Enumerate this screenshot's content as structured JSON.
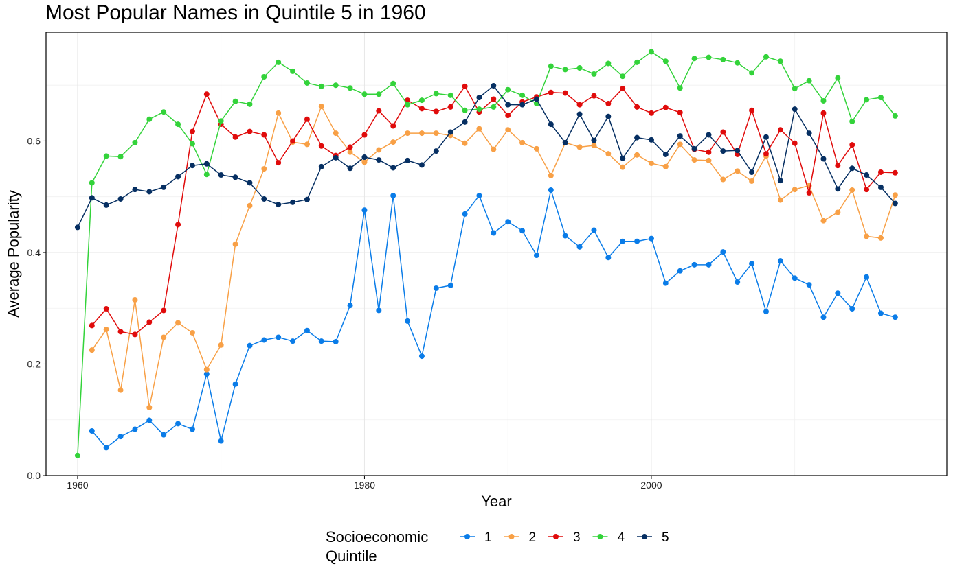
{
  "chart_data": {
    "type": "line",
    "title": "Most Popular Names in Quintile 5 in 1960",
    "xlabel": "Year",
    "ylabel": "Average Popularity",
    "xlim": [
      1957.8,
      2020.6
    ],
    "ylim": [
      0.0,
      0.795
    ],
    "x_ticks": [
      1960,
      1980,
      2000
    ],
    "y_ticks": [
      0.0,
      0.2,
      0.4,
      0.6
    ],
    "y_tick_labels": [
      "0.0",
      "0.2",
      "0.4",
      "0.6"
    ],
    "grid": true,
    "legend": {
      "title_lines": [
        "Socioeconomic",
        "Quintile"
      ],
      "position": "bottom"
    },
    "series": [
      {
        "name": "1",
        "color": "#0a7ce8",
        "x": [
          1961,
          1962,
          1963,
          1964,
          1965,
          1966,
          1967,
          1968,
          1969,
          1970,
          1971,
          1972,
          1973,
          1974,
          1975,
          1976,
          1977,
          1978,
          1979,
          1980,
          1981,
          1982,
          1983,
          1984,
          1985,
          1986,
          1987,
          1988,
          1989,
          1990,
          1991,
          1992,
          1993,
          1994,
          1995,
          1996,
          1997,
          1998,
          1999,
          2000,
          2001,
          2002,
          2003,
          2004,
          2005,
          2006,
          2007,
          2008,
          2009,
          2010,
          2011,
          2012,
          2013,
          2014,
          2015,
          2016,
          2017
        ],
        "values": [
          0.08,
          0.05,
          0.07,
          0.083,
          0.099,
          0.073,
          0.093,
          0.083,
          0.182,
          0.062,
          0.164,
          0.233,
          0.243,
          0.248,
          0.241,
          0.26,
          0.241,
          0.24,
          0.305,
          0.476,
          0.296,
          0.502,
          0.277,
          0.214,
          0.336,
          0.341,
          0.469,
          0.502,
          0.435,
          0.455,
          0.439,
          0.395,
          0.512,
          0.43,
          0.41,
          0.44,
          0.391,
          0.42,
          0.42,
          0.425,
          0.345,
          0.367,
          0.378,
          0.378,
          0.401,
          0.347,
          0.38,
          0.294,
          0.385,
          0.354,
          0.342,
          0.284,
          0.327,
          0.299,
          0.356,
          0.291,
          0.284
        ]
      },
      {
        "name": "2",
        "color": "#f8a046",
        "x": [
          1961,
          1962,
          1963,
          1964,
          1965,
          1966,
          1967,
          1968,
          1969,
          1970,
          1971,
          1972,
          1973,
          1974,
          1975,
          1976,
          1977,
          1978,
          1979,
          1980,
          1981,
          1982,
          1983,
          1984,
          1985,
          1986,
          1987,
          1988,
          1989,
          1990,
          1991,
          1992,
          1993,
          1994,
          1995,
          1996,
          1997,
          1998,
          1999,
          2000,
          2001,
          2002,
          2003,
          2004,
          2005,
          2006,
          2007,
          2008,
          2009,
          2010,
          2011,
          2012,
          2013,
          2014,
          2015,
          2016,
          2017
        ],
        "values": [
          0.225,
          0.262,
          0.153,
          0.315,
          0.122,
          0.248,
          0.274,
          0.256,
          0.19,
          0.234,
          0.415,
          0.484,
          0.55,
          0.65,
          0.598,
          0.594,
          0.662,
          0.614,
          0.58,
          0.562,
          0.584,
          0.598,
          0.614,
          0.614,
          0.614,
          0.61,
          0.596,
          0.622,
          0.585,
          0.62,
          0.597,
          0.586,
          0.538,
          0.597,
          0.589,
          0.592,
          0.577,
          0.553,
          0.575,
          0.56,
          0.554,
          0.594,
          0.566,
          0.565,
          0.531,
          0.546,
          0.528,
          0.573,
          0.494,
          0.513,
          0.52,
          0.457,
          0.472,
          0.512,
          0.429,
          0.426,
          0.503
        ]
      },
      {
        "name": "3",
        "color": "#e00b0b",
        "x": [
          1961,
          1962,
          1963,
          1964,
          1965,
          1966,
          1967,
          1968,
          1969,
          1970,
          1971,
          1972,
          1973,
          1974,
          1975,
          1976,
          1977,
          1978,
          1979,
          1980,
          1981,
          1982,
          1983,
          1984,
          1985,
          1986,
          1987,
          1988,
          1989,
          1990,
          1991,
          1992,
          1993,
          1994,
          1995,
          1996,
          1997,
          1998,
          1999,
          2000,
          2001,
          2002,
          2003,
          2004,
          2005,
          2006,
          2007,
          2008,
          2009,
          2010,
          2011,
          2012,
          2013,
          2014,
          2015,
          2016,
          2017
        ],
        "values": [
          0.269,
          0.299,
          0.258,
          0.253,
          0.275,
          0.296,
          0.45,
          0.617,
          0.684,
          0.63,
          0.607,
          0.617,
          0.611,
          0.561,
          0.6,
          0.639,
          0.591,
          0.574,
          0.589,
          0.611,
          0.654,
          0.627,
          0.673,
          0.658,
          0.653,
          0.661,
          0.698,
          0.652,
          0.675,
          0.646,
          0.67,
          0.679,
          0.687,
          0.686,
          0.665,
          0.681,
          0.667,
          0.694,
          0.661,
          0.65,
          0.66,
          0.651,
          0.585,
          0.58,
          0.616,
          0.576,
          0.655,
          0.577,
          0.62,
          0.596,
          0.507,
          0.65,
          0.556,
          0.593,
          0.513,
          0.544,
          0.543
        ]
      },
      {
        "name": "4",
        "color": "#33d33a",
        "x": [
          1960,
          1961,
          1962,
          1963,
          1964,
          1965,
          1966,
          1967,
          1968,
          1969,
          1970,
          1971,
          1972,
          1973,
          1974,
          1975,
          1976,
          1977,
          1978,
          1979,
          1980,
          1981,
          1982,
          1983,
          1984,
          1985,
          1986,
          1987,
          1988,
          1989,
          1990,
          1991,
          1992,
          1993,
          1994,
          1995,
          1996,
          1997,
          1998,
          1999,
          2000,
          2001,
          2002,
          2003,
          2004,
          2005,
          2006,
          2007,
          2008,
          2009,
          2010,
          2011,
          2012,
          2013,
          2014,
          2015,
          2016,
          2017
        ],
        "values": [
          0.036,
          0.525,
          0.573,
          0.572,
          0.597,
          0.639,
          0.652,
          0.63,
          0.595,
          0.54,
          0.636,
          0.671,
          0.666,
          0.715,
          0.741,
          0.725,
          0.704,
          0.698,
          0.7,
          0.695,
          0.684,
          0.684,
          0.703,
          0.665,
          0.673,
          0.685,
          0.682,
          0.655,
          0.657,
          0.661,
          0.692,
          0.682,
          0.667,
          0.734,
          0.728,
          0.731,
          0.72,
          0.739,
          0.716,
          0.741,
          0.76,
          0.743,
          0.695,
          0.748,
          0.75,
          0.746,
          0.74,
          0.722,
          0.751,
          0.743,
          0.694,
          0.708,
          0.672,
          0.713,
          0.635,
          0.674,
          0.678,
          0.645
        ]
      },
      {
        "name": "5",
        "color": "#062f62",
        "x": [
          1960,
          1961,
          1962,
          1963,
          1964,
          1965,
          1966,
          1967,
          1968,
          1969,
          1970,
          1971,
          1972,
          1973,
          1974,
          1975,
          1976,
          1977,
          1978,
          1979,
          1980,
          1981,
          1982,
          1983,
          1984,
          1985,
          1986,
          1987,
          1988,
          1989,
          1990,
          1991,
          1992,
          1993,
          1994,
          1995,
          1996,
          1997,
          1998,
          1999,
          2000,
          2001,
          2002,
          2003,
          2004,
          2005,
          2006,
          2007,
          2008,
          2009,
          2010,
          2011,
          2012,
          2013,
          2014,
          2015,
          2016,
          2017
        ],
        "values": [
          0.445,
          0.498,
          0.485,
          0.496,
          0.513,
          0.509,
          0.517,
          0.536,
          0.556,
          0.559,
          0.539,
          0.535,
          0.525,
          0.496,
          0.486,
          0.49,
          0.495,
          0.554,
          0.57,
          0.551,
          0.571,
          0.566,
          0.552,
          0.565,
          0.557,
          0.582,
          0.616,
          0.634,
          0.678,
          0.699,
          0.665,
          0.665,
          0.675,
          0.63,
          0.597,
          0.648,
          0.601,
          0.644,
          0.569,
          0.606,
          0.602,
          0.576,
          0.609,
          0.586,
          0.611,
          0.582,
          0.583,
          0.544,
          0.607,
          0.529,
          0.657,
          0.614,
          0.568,
          0.514,
          0.551,
          0.539,
          0.517,
          0.488
        ]
      }
    ]
  }
}
